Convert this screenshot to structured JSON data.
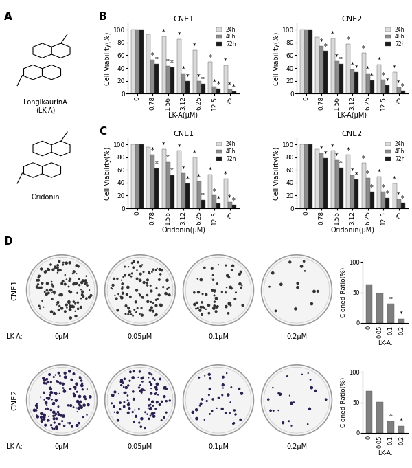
{
  "panel_labels": [
    "A",
    "B",
    "C",
    "D"
  ],
  "structures": [
    "LongikaurinA\n(LK-A)",
    "Oridonin"
  ],
  "colony_images": {
    "rows": [
      "CNE1",
      "CNE2"
    ],
    "prefix": "LK-A:",
    "labels": [
      "0μM",
      "0.05μM",
      "0.1μM",
      "0.2μM"
    ]
  },
  "chart_data": [
    {
      "type": "bar",
      "title": "CNE1",
      "xlabel": "LK-A(μM)",
      "ylabel": "Cell Viability(%)",
      "categories": [
        "0",
        "0.78",
        "1.56",
        "3.12",
        "6.25",
        "12.5",
        "25"
      ],
      "ylim": [
        0,
        110
      ],
      "yticks": [
        0,
        20,
        40,
        60,
        80,
        100
      ],
      "legend": "upper right",
      "series": [
        {
          "name": "24h",
          "color": "#dcdcdc",
          "values": [
            100,
            93,
            90,
            85,
            68,
            50,
            44
          ],
          "significance": [
            null,
            null,
            "*",
            "*",
            "*",
            "*",
            "*"
          ]
        },
        {
          "name": "48h",
          "color": "#8c8c8c",
          "values": [
            100,
            53,
            43,
            31,
            20,
            11,
            7
          ],
          "significance": [
            null,
            "*",
            "*",
            "*",
            "*",
            "*",
            "*"
          ]
        },
        {
          "name": "72h",
          "color": "#1a1a1a",
          "values": [
            100,
            47,
            41,
            20,
            15,
            8,
            3
          ],
          "significance": [
            null,
            "*",
            "*",
            "*",
            "*",
            "*",
            "*"
          ]
        }
      ]
    },
    {
      "type": "bar",
      "title": "CNE2",
      "xlabel": "LK-A(μM)",
      "ylabel": "Cell Viability(%)",
      "categories": [
        "0",
        "0.78",
        "1.56",
        "3.12",
        "6.25",
        "12.5",
        "25"
      ],
      "ylim": [
        0,
        110
      ],
      "yticks": [
        0,
        20,
        40,
        60,
        80,
        100
      ],
      "legend": "upper right",
      "series": [
        {
          "name": "24h",
          "color": "#dcdcdc",
          "values": [
            100,
            89,
            86,
            78,
            64,
            45,
            34
          ],
          "significance": [
            null,
            null,
            "*",
            "*",
            "*",
            "*",
            "*"
          ]
        },
        {
          "name": "48h",
          "color": "#8c8c8c",
          "values": [
            100,
            75,
            51,
            38,
            31,
            22,
            10
          ],
          "significance": [
            null,
            "*",
            "*",
            "*",
            "*",
            "*",
            "*"
          ]
        },
        {
          "name": "72h",
          "color": "#1a1a1a",
          "values": [
            100,
            67,
            47,
            34,
            21,
            13,
            5
          ],
          "significance": [
            null,
            "*",
            "*",
            "*",
            "*",
            "*",
            "*"
          ]
        }
      ]
    },
    {
      "type": "bar",
      "title": "CNE1",
      "xlabel": "Oridonin(μM)",
      "ylabel": "Cell Viability(%)",
      "categories": [
        "0",
        "0.78",
        "1.56",
        "3.12",
        "6.25",
        "12.5",
        "25"
      ],
      "ylim": [
        0,
        110
      ],
      "yticks": [
        0,
        20,
        40,
        60,
        80,
        100
      ],
      "legend": "upper right",
      "series": [
        {
          "name": "24h",
          "color": "#dcdcdc",
          "values": [
            100,
            96,
            93,
            90,
            80,
            53,
            46
          ],
          "significance": [
            null,
            null,
            "*",
            "*",
            "*",
            "*",
            "*"
          ]
        },
        {
          "name": "48h",
          "color": "#8c8c8c",
          "values": [
            100,
            84,
            72,
            55,
            42,
            20,
            10
          ],
          "significance": [
            null,
            "*",
            "*",
            "*",
            "*",
            "*",
            "*"
          ]
        },
        {
          "name": "72h",
          "color": "#1a1a1a",
          "values": [
            100,
            63,
            52,
            39,
            13,
            8,
            5
          ],
          "significance": [
            null,
            "*",
            "*",
            "*",
            "*",
            "*",
            "*"
          ]
        }
      ]
    },
    {
      "type": "bar",
      "title": "CNE2",
      "xlabel": "Oridonin(μM)",
      "ylabel": "Cell Viability(%)",
      "categories": [
        "0",
        "0.78",
        "1.56",
        "3.12",
        "6.25",
        "12.5",
        "25"
      ],
      "ylim": [
        0,
        110
      ],
      "yticks": [
        0,
        20,
        40,
        60,
        80,
        100
      ],
      "legend": "upper right",
      "series": [
        {
          "name": "24h",
          "color": "#dcdcdc",
          "values": [
            100,
            93,
            90,
            84,
            71,
            50,
            39
          ],
          "significance": [
            null,
            null,
            "*",
            "*",
            "*",
            "*",
            "*"
          ]
        },
        {
          "name": "48h",
          "color": "#8c8c8c",
          "values": [
            100,
            86,
            75,
            52,
            47,
            26,
            14
          ],
          "significance": [
            null,
            "*",
            "*",
            "*",
            "*",
            "*",
            "*"
          ]
        },
        {
          "name": "72h",
          "color": "#1a1a1a",
          "values": [
            100,
            79,
            64,
            45,
            26,
            16,
            9
          ],
          "significance": [
            null,
            "*",
            "*",
            "*",
            "*",
            "*",
            "*"
          ]
        }
      ]
    },
    {
      "type": "bar",
      "xlabel": "LK-A:",
      "ylabel": "Cloned Ratio(%)",
      "categories": [
        "0",
        "0.05",
        "0.1",
        "0.2"
      ],
      "color": "#7f7f7f",
      "values": [
        63,
        49,
        31,
        7
      ],
      "significance": [
        null,
        null,
        "*",
        "*"
      ],
      "ylim": [
        0,
        100
      ],
      "yticks": [
        0,
        50,
        100
      ]
    },
    {
      "type": "bar",
      "xlabel": "LK-A:",
      "ylabel": "Cloned Ratio(%)",
      "categories": [
        "0",
        "0.05",
        "0.1",
        "0.2"
      ],
      "color": "#7f7f7f",
      "values": [
        69,
        51,
        19,
        11
      ],
      "significance": [
        null,
        null,
        "*",
        "*"
      ],
      "ylim": [
        0,
        100
      ],
      "yticks": [
        0,
        50,
        100
      ]
    }
  ]
}
